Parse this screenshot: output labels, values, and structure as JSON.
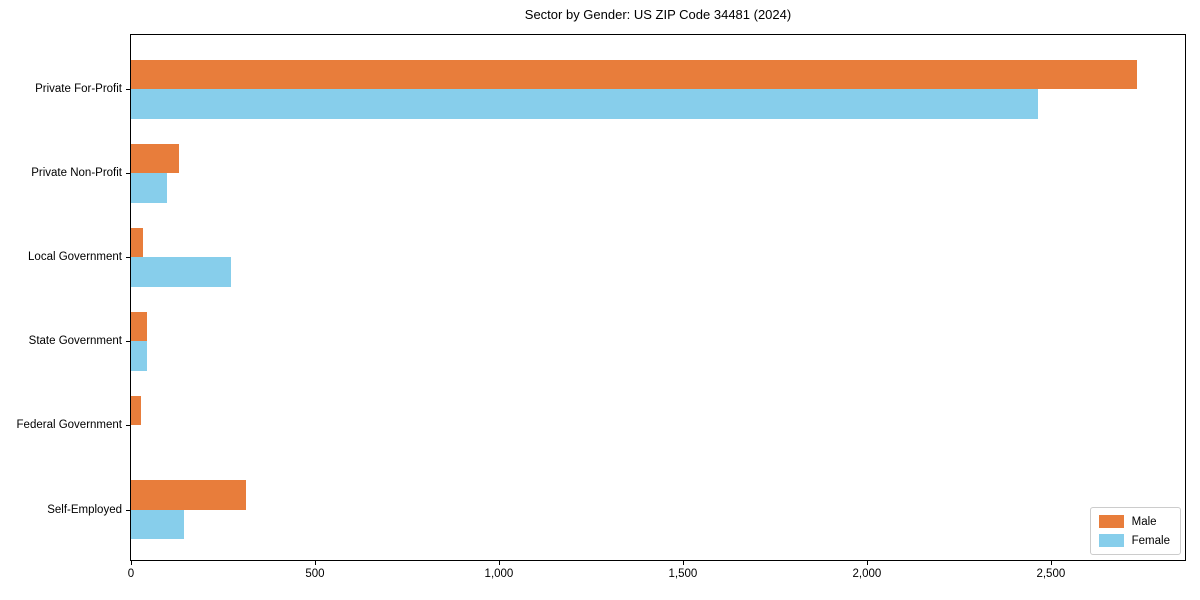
{
  "title": "Sector by Gender: US ZIP Code 34481 (2024)",
  "chart_data": {
    "type": "bar",
    "orientation": "horizontal",
    "title": "Sector by Gender: US ZIP Code 34481 (2024)",
    "categories": [
      "Private For-Profit",
      "Private Non-Profit",
      "Local Government",
      "State Government",
      "Federal Government",
      "Self-Employed"
    ],
    "series": [
      {
        "name": "Male",
        "color": "#e87d3b",
        "values": [
          2735,
          130,
          33,
          44,
          27,
          313
        ]
      },
      {
        "name": "Female",
        "color": "#87ceeb",
        "values": [
          2465,
          99,
          272,
          43,
          0,
          145
        ]
      }
    ],
    "xlabel": "",
    "ylabel": "",
    "xlim": [
      0,
      2870
    ],
    "xticks": [
      0,
      500,
      1000,
      1500,
      2000,
      2500
    ],
    "xtick_labels": [
      "0",
      "500",
      "1,000",
      "1,500",
      "2,000",
      "2,500"
    ],
    "grid": false,
    "legend_position": "lower right"
  },
  "legend": {
    "items": [
      {
        "label": "Male",
        "color": "#e87d3b"
      },
      {
        "label": "Female",
        "color": "#87ceeb"
      }
    ]
  }
}
